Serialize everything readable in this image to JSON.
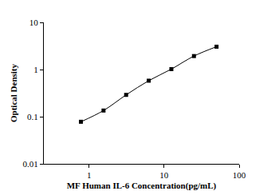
{
  "chart_data": {
    "type": "scatter",
    "x_label": "MF Human IL-6 Concentration(pg/mL)",
    "y_label": "Optical Density",
    "x": [
      0.78,
      1.56,
      3.12,
      6.25,
      12.5,
      25,
      50
    ],
    "values": [
      0.078,
      0.135,
      0.29,
      0.58,
      1.02,
      1.93,
      3.05
    ],
    "color": "#000000",
    "marker": "square",
    "line_style": "solid",
    "log": true,
    "grid": false,
    "xlim": [
      0.25,
      100
    ],
    "xticks": [
      1,
      10,
      100
    ],
    "ylim": [
      0.01,
      10
    ],
    "yticks": [
      0.01,
      0.1,
      1,
      10
    ]
  }
}
